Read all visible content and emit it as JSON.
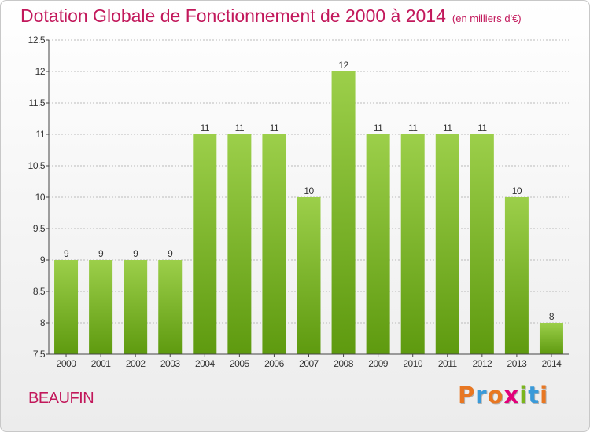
{
  "header": {
    "title": "Dotation Globale de Fonctionnement de 2000 à 2014",
    "subtitle": "(en milliers d'€)"
  },
  "footer": {
    "location": "BEAUFIN",
    "logo_text": "Proxiti",
    "logo_colors": [
      "#e87722",
      "#3a9ad9",
      "#e87722",
      "#e2007a",
      "#7ab51d",
      "#3a9ad9",
      "#e87722"
    ]
  },
  "colors": {
    "title": "#c2185b",
    "bar_light": "#9ccf4a",
    "bar_dark": "#5e9a0f",
    "axis": "#444444",
    "grid": "#bbbbbb"
  },
  "chart_data": {
    "type": "bar",
    "title": "Dotation Globale de Fonctionnement de 2000 à 2014",
    "subtitle": "(en milliers d'€)",
    "xlabel": "",
    "ylabel": "",
    "categories": [
      "2000",
      "2001",
      "2002",
      "2003",
      "2004",
      "2005",
      "2006",
      "2007",
      "2008",
      "2009",
      "2010",
      "2011",
      "2012",
      "2013",
      "2014"
    ],
    "values": [
      9,
      9,
      9,
      9,
      11,
      11,
      11,
      10,
      12,
      11,
      11,
      11,
      11,
      10,
      8
    ],
    "data_labels": [
      "9",
      "9",
      "9",
      "9",
      "11",
      "11",
      "11",
      "10",
      "12",
      "11",
      "11",
      "11",
      "11",
      "10",
      "8"
    ],
    "ylim": [
      7.5,
      12.5
    ],
    "yticks": [
      "7.5",
      "8",
      "8.5",
      "9",
      "9.5",
      "10",
      "10.5",
      "11",
      "11.5",
      "12",
      "12.5"
    ],
    "grid": true,
    "legend": "none"
  }
}
